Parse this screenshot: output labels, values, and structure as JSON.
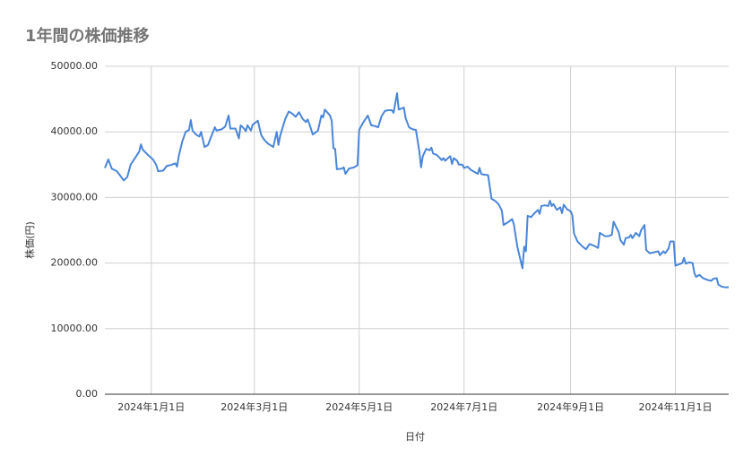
{
  "chart_data": {
    "type": "line",
    "title": "1年間の株価推移",
    "x_label": "日付",
    "y_label": "株価(円)",
    "xlim": [
      "2023-12-05",
      "2024-12-02"
    ],
    "xticks": [
      {
        "value": "2024-01-01",
        "label": "2024年1月1日"
      },
      {
        "value": "2024-03-01",
        "label": "2024年3月1日"
      },
      {
        "value": "2024-05-01",
        "label": "2024年5月1日"
      },
      {
        "value": "2024-07-01",
        "label": "2024年7月1日"
      },
      {
        "value": "2024-09-01",
        "label": "2024年9月1日"
      },
      {
        "value": "2024-11-01",
        "label": "2024年11月1日"
      }
    ],
    "ylim": [
      0,
      50000
    ],
    "yticks": [
      {
        "value": 0,
        "label": "0.00"
      },
      {
        "value": 10000,
        "label": "10000.00"
      },
      {
        "value": 20000,
        "label": "20000.00"
      },
      {
        "value": 30000,
        "label": "30000.00"
      },
      {
        "value": 40000,
        "label": "40000.00"
      },
      {
        "value": 50000,
        "label": "50000.00"
      }
    ],
    "grid": true,
    "series": [
      {
        "name": "株価",
        "color": "#4a86d8",
        "x": [
          "2023-12-05",
          "2023-12-07",
          "2023-12-09",
          "2023-12-12",
          "2023-12-16",
          "2023-12-18",
          "2023-12-20",
          "2023-12-22",
          "2023-12-25",
          "2023-12-26",
          "2023-12-27",
          "2023-12-30",
          "2024-01-02",
          "2024-01-04",
          "2024-01-05",
          "2024-01-08",
          "2024-01-10",
          "2024-01-13",
          "2024-01-15",
          "2024-01-16",
          "2024-01-17",
          "2024-01-19",
          "2024-01-21",
          "2024-01-23",
          "2024-01-24",
          "2024-01-25",
          "2024-01-27",
          "2024-01-29",
          "2024-01-30",
          "2024-02-01",
          "2024-02-03",
          "2024-02-04",
          "2024-02-07",
          "2024-02-08",
          "2024-02-11",
          "2024-02-13",
          "2024-02-15",
          "2024-02-16",
          "2024-02-19",
          "2024-02-21",
          "2024-02-22",
          "2024-02-24",
          "2024-02-25",
          "2024-02-26",
          "2024-02-28",
          "2024-02-29",
          "2024-03-03",
          "2024-03-05",
          "2024-03-07",
          "2024-03-09",
          "2024-03-12",
          "2024-03-14",
          "2024-03-15",
          "2024-03-16",
          "2024-03-19",
          "2024-03-21",
          "2024-03-23",
          "2024-03-25",
          "2024-03-27",
          "2024-03-29",
          "2024-03-31",
          "2024-04-01",
          "2024-04-02",
          "2024-04-04",
          "2024-04-07",
          "2024-04-09",
          "2024-04-10",
          "2024-04-11",
          "2024-04-14",
          "2024-04-15",
          "2024-04-16",
          "2024-04-17",
          "2024-04-18",
          "2024-04-21",
          "2024-04-22",
          "2024-04-23",
          "2024-04-25",
          "2024-04-28",
          "2024-04-30",
          "2024-05-01",
          "2024-05-03",
          "2024-05-06",
          "2024-05-08",
          "2024-05-10",
          "2024-05-12",
          "2024-05-14",
          "2024-05-16",
          "2024-05-18",
          "2024-05-20",
          "2024-05-21",
          "2024-05-23",
          "2024-05-24",
          "2024-05-27",
          "2024-05-28",
          "2024-05-30",
          "2024-06-01",
          "2024-06-03",
          "2024-06-05",
          "2024-06-06",
          "2024-06-07",
          "2024-06-09",
          "2024-06-11",
          "2024-06-12",
          "2024-06-13",
          "2024-06-15",
          "2024-06-17",
          "2024-06-18",
          "2024-06-19",
          "2024-06-20",
          "2024-06-23",
          "2024-06-24",
          "2024-06-25",
          "2024-06-27",
          "2024-06-28",
          "2024-06-30",
          "2024-07-01",
          "2024-07-03",
          "2024-07-05",
          "2024-07-07",
          "2024-07-09",
          "2024-07-10",
          "2024-07-11",
          "2024-07-12",
          "2024-07-15",
          "2024-07-17",
          "2024-07-19",
          "2024-07-21",
          "2024-07-23",
          "2024-07-24",
          "2024-07-27",
          "2024-07-29",
          "2024-07-30",
          "2024-08-01",
          "2024-08-03",
          "2024-08-04",
          "2024-08-05",
          "2024-08-06",
          "2024-08-07",
          "2024-08-09",
          "2024-08-11",
          "2024-08-13",
          "2024-08-14",
          "2024-08-15",
          "2024-08-17",
          "2024-08-19",
          "2024-08-20",
          "2024-08-21",
          "2024-08-22",
          "2024-08-24",
          "2024-08-26",
          "2024-08-27",
          "2024-08-28",
          "2024-08-30",
          "2024-09-01",
          "2024-09-02",
          "2024-09-03",
          "2024-09-05",
          "2024-09-08",
          "2024-09-10",
          "2024-09-12",
          "2024-09-15",
          "2024-09-17",
          "2024-09-18",
          "2024-09-21",
          "2024-09-23",
          "2024-09-25",
          "2024-09-26",
          "2024-09-29",
          "2024-09-30",
          "2024-10-02",
          "2024-10-03",
          "2024-10-05",
          "2024-10-06",
          "2024-10-07",
          "2024-10-09",
          "2024-10-11",
          "2024-10-12",
          "2024-10-14",
          "2024-10-15",
          "2024-10-17",
          "2024-10-19",
          "2024-10-22",
          "2024-10-23",
          "2024-10-25",
          "2024-10-26",
          "2024-10-28",
          "2024-10-29",
          "2024-10-31",
          "2024-11-01",
          "2024-11-03",
          "2024-11-05",
          "2024-11-06",
          "2024-11-07",
          "2024-11-09",
          "2024-11-11",
          "2024-11-12",
          "2024-11-13",
          "2024-11-15",
          "2024-11-17",
          "2024-11-20",
          "2024-11-22",
          "2024-11-23",
          "2024-11-25",
          "2024-11-26",
          "2024-11-28",
          "2024-11-30",
          "2024-12-02"
        ],
        "values": [
          34500,
          35800,
          34400,
          34000,
          32600,
          33100,
          35000,
          35800,
          37000,
          38100,
          37300,
          36500,
          35800,
          34900,
          34000,
          34100,
          34800,
          35000,
          35200,
          34700,
          36300,
          38500,
          40000,
          40300,
          41800,
          40200,
          39600,
          39300,
          40000,
          37700,
          38000,
          38700,
          40700,
          40200,
          40400,
          40800,
          42500,
          40500,
          40500,
          39000,
          41000,
          40500,
          40100,
          41000,
          40200,
          41100,
          41700,
          39500,
          38700,
          38200,
          37700,
          40000,
          38000,
          39400,
          42000,
          43100,
          42800,
          42300,
          43000,
          42000,
          41500,
          41900,
          41200,
          39600,
          40200,
          42500,
          42200,
          43400,
          42500,
          41700,
          37500,
          37400,
          34300,
          34400,
          34600,
          33600,
          34400,
          34600,
          34900,
          40300,
          41300,
          42500,
          41000,
          40900,
          40700,
          42400,
          43200,
          43300,
          43300,
          42900,
          45900,
          43400,
          43700,
          42100,
          40700,
          40400,
          40300,
          37000,
          34600,
          36300,
          37400,
          37200,
          37600,
          36700,
          36500,
          36000,
          35700,
          36000,
          35600,
          36300,
          35100,
          36000,
          35600,
          35000,
          35000,
          34500,
          34700,
          34200,
          33900,
          33600,
          34500,
          33600,
          33500,
          33400,
          29800,
          29500,
          29000,
          28000,
          25800,
          26300,
          26700,
          25900,
          22500,
          20300,
          19200,
          22500,
          21800,
          27200,
          27000,
          27600,
          28100,
          27500,
          28700,
          28800,
          28700,
          29500,
          28700,
          29000,
          28100,
          28500,
          27600,
          28900,
          28200,
          27900,
          27300,
          24500,
          23300,
          22500,
          22100,
          22900,
          22600,
          22300,
          24600,
          24100,
          24100,
          24300,
          26300,
          24700,
          23500,
          22800,
          23800,
          23900,
          24300,
          23800,
          24600,
          24100,
          25000,
          25800,
          22000,
          21500,
          21600,
          21800,
          21200,
          21800,
          21500,
          22200,
          23300,
          23300,
          19600,
          19800,
          20000,
          20800,
          19900,
          20100,
          20000,
          18500,
          17900,
          18200,
          17700,
          17400,
          17300,
          17600,
          17700,
          16700,
          16400,
          16300,
          16300
        ]
      }
    ]
  }
}
